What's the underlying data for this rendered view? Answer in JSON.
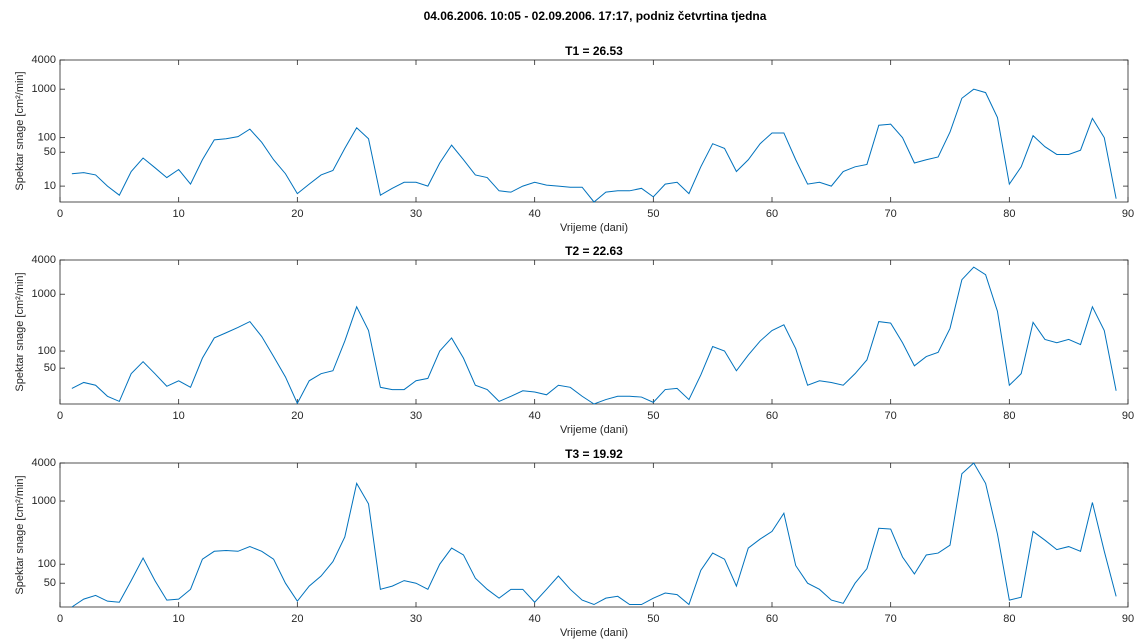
{
  "title": "04.06.2006. 10:05 - 02.09.2006. 17:17, podniz četvrtina tjedna",
  "chart_data": [
    {
      "type": "line",
      "title": "T1 = 26.53",
      "xlabel": "Vrijeme (dani)",
      "ylabel": "Spektar snage [cm²/min]",
      "yscale": "log",
      "grid": false,
      "color": "#0072bd",
      "xlim": [
        0,
        90
      ],
      "xticks": [
        0,
        10,
        20,
        30,
        40,
        50,
        60,
        70,
        80,
        90
      ],
      "ylim": [
        4.7,
        4000
      ],
      "yticks": [
        10,
        50,
        100,
        1000,
        4000
      ],
      "x": [
        1,
        2,
        3,
        4,
        5,
        6,
        7,
        8,
        9,
        10,
        11,
        12,
        13,
        14,
        15,
        16,
        17,
        18,
        19,
        20,
        21,
        22,
        23,
        24,
        25,
        26,
        27,
        28,
        29,
        30,
        31,
        32,
        33,
        34,
        35,
        36,
        37,
        38,
        39,
        40,
        41,
        42,
        43,
        44,
        45,
        46,
        47,
        48,
        49,
        50,
        51,
        52,
        53,
        54,
        55,
        56,
        57,
        58,
        59,
        60,
        61,
        62,
        63,
        64,
        65,
        66,
        67,
        68,
        69,
        70,
        71,
        72,
        73,
        74,
        75,
        76,
        77,
        78,
        79,
        80,
        81,
        82,
        83,
        84,
        85,
        86,
        87,
        88,
        89
      ],
      "values": [
        18,
        19,
        17,
        10,
        6.5,
        20,
        38,
        24,
        15,
        22,
        11,
        35,
        90,
        95,
        105,
        150,
        80,
        35,
        18,
        7,
        11,
        17,
        21,
        60,
        160,
        95,
        6.5,
        9,
        12,
        12,
        10,
        30,
        70,
        35,
        17,
        15,
        8,
        7.5,
        10,
        12,
        10.5,
        10,
        9.5,
        9.5,
        4.7,
        7.5,
        8,
        8,
        9,
        6,
        11,
        12,
        7,
        25,
        75,
        60,
        20,
        35,
        75,
        125,
        125,
        35,
        11,
        12,
        10,
        20,
        25,
        28,
        180,
        190,
        100,
        30,
        35,
        40,
        130,
        650,
        1000,
        850,
        260,
        11,
        25,
        110,
        65,
        45,
        45,
        55,
        250,
        100,
        5.5
      ]
    },
    {
      "type": "line",
      "title": "T2 = 22.63",
      "xlabel": "Vrijeme (dani)",
      "ylabel": "Spektar snage [cm²/min]",
      "yscale": "log",
      "grid": false,
      "color": "#0072bd",
      "xlim": [
        0,
        90
      ],
      "xticks": [
        0,
        10,
        20,
        30,
        40,
        50,
        60,
        70,
        80,
        90
      ],
      "ylim": [
        11.7,
        4000
      ],
      "yticks": [
        50,
        100,
        1000,
        4000
      ],
      "x": [
        1,
        2,
        3,
        4,
        5,
        6,
        7,
        8,
        9,
        10,
        11,
        12,
        13,
        14,
        15,
        16,
        17,
        18,
        19,
        20,
        21,
        22,
        23,
        24,
        25,
        26,
        27,
        28,
        29,
        30,
        31,
        32,
        33,
        34,
        35,
        36,
        37,
        38,
        39,
        40,
        41,
        42,
        43,
        44,
        45,
        46,
        47,
        48,
        49,
        50,
        51,
        52,
        53,
        54,
        55,
        56,
        57,
        58,
        59,
        60,
        61,
        62,
        63,
        64,
        65,
        66,
        67,
        68,
        69,
        70,
        71,
        72,
        73,
        74,
        75,
        76,
        77,
        78,
        79,
        80,
        81,
        82,
        83,
        84,
        85,
        86,
        87,
        88,
        89
      ],
      "values": [
        22,
        28,
        25,
        16,
        13,
        40,
        65,
        40,
        24,
        30,
        23,
        75,
        170,
        210,
        260,
        330,
        180,
        80,
        35,
        12,
        30,
        40,
        45,
        150,
        600,
        230,
        23,
        21,
        21,
        30,
        33,
        100,
        170,
        75,
        25,
        21,
        13,
        16,
        20,
        19,
        17,
        25,
        23,
        16,
        11.7,
        14,
        16,
        16,
        15.5,
        12.5,
        21,
        22,
        14,
        38,
        120,
        100,
        45,
        85,
        150,
        230,
        290,
        110,
        25,
        30,
        28,
        25,
        40,
        70,
        330,
        310,
        140,
        55,
        80,
        95,
        250,
        1800,
        3000,
        2200,
        500,
        25,
        40,
        320,
        160,
        140,
        160,
        130,
        600,
        230,
        20
      ]
    },
    {
      "type": "line",
      "title": "T3 = 19.92",
      "xlabel": "Vrijeme (dani)",
      "ylabel": "Spektar snage [cm²/min]",
      "yscale": "log",
      "grid": false,
      "color": "#0072bd",
      "xlim": [
        0,
        90
      ],
      "xticks": [
        0,
        10,
        20,
        30,
        40,
        50,
        60,
        70,
        80,
        90
      ],
      "ylim": [
        21,
        4000
      ],
      "yticks": [
        50,
        100,
        1000,
        4000
      ],
      "x": [
        1,
        2,
        3,
        4,
        5,
        6,
        7,
        8,
        9,
        10,
        11,
        12,
        13,
        14,
        15,
        16,
        17,
        18,
        19,
        20,
        21,
        22,
        23,
        24,
        25,
        26,
        27,
        28,
        29,
        30,
        31,
        32,
        33,
        34,
        35,
        36,
        37,
        38,
        39,
        40,
        41,
        42,
        43,
        44,
        45,
        46,
        47,
        48,
        49,
        50,
        51,
        52,
        53,
        54,
        55,
        56,
        57,
        58,
        59,
        60,
        61,
        62,
        63,
        64,
        65,
        66,
        67,
        68,
        69,
        70,
        71,
        72,
        73,
        74,
        75,
        76,
        77,
        78,
        79,
        80,
        81,
        82,
        83,
        84,
        85,
        86,
        87,
        88,
        89
      ],
      "values": [
        21,
        28,
        32,
        26,
        25,
        55,
        125,
        55,
        27,
        28,
        40,
        120,
        160,
        165,
        160,
        190,
        160,
        120,
        50,
        26,
        45,
        65,
        110,
        270,
        1900,
        900,
        40,
        45,
        55,
        50,
        40,
        100,
        180,
        140,
        60,
        40,
        29,
        40,
        40,
        25,
        40,
        65,
        40,
        27,
        23,
        29,
        31,
        23,
        23,
        29,
        35,
        33,
        23,
        80,
        150,
        120,
        45,
        180,
        250,
        330,
        640,
        95,
        50,
        40,
        27,
        24,
        50,
        85,
        370,
        360,
        130,
        70,
        140,
        150,
        200,
        2700,
        4000,
        1900,
        300,
        27,
        30,
        330,
        240,
        170,
        190,
        160,
        950,
        160,
        31
      ]
    }
  ]
}
